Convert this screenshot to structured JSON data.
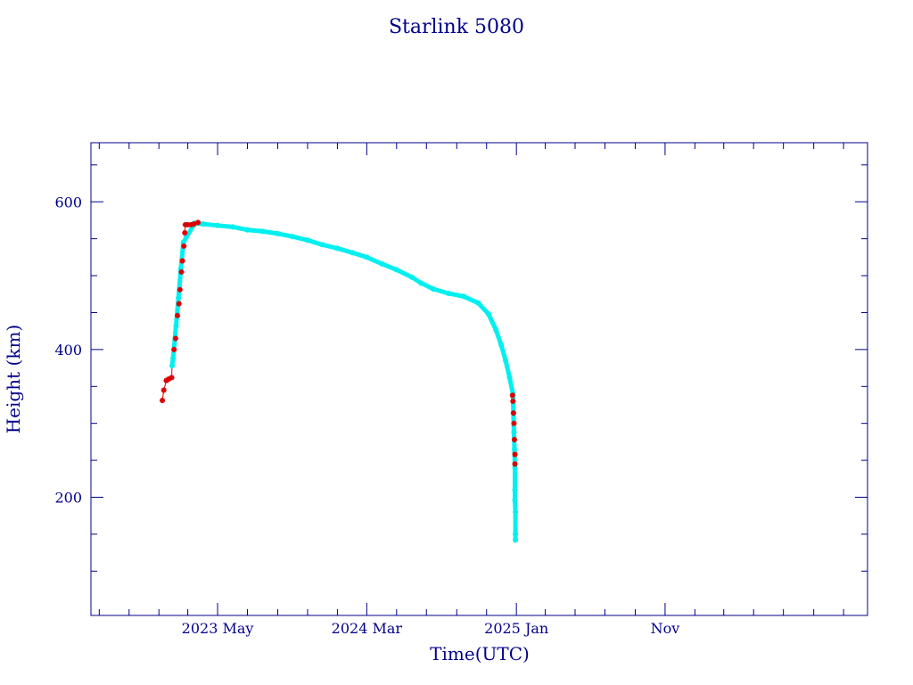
{
  "chart_data": {
    "type": "scatter",
    "title": "Starlink 5080",
    "xlabel": "Time(UTC)",
    "ylabel": "Height (km)",
    "x_domain": [
      "2022-08-15",
      "2026-12-20"
    ],
    "ylim": [
      40,
      680
    ],
    "x_ticks": [
      {
        "date": "2023-05-01",
        "label": "2023 May"
      },
      {
        "date": "2024-03-01",
        "label": "2024 Mar"
      },
      {
        "date": "2025-01-01",
        "label": "2025 Jan"
      },
      {
        "date": "2025-11-01",
        "label": "Nov"
      }
    ],
    "y_ticks": [
      200,
      400,
      600
    ],
    "colors": {
      "axis": "#00008b",
      "series_a": "#00f0f0",
      "series_b": "#dd0000",
      "line": "#dd0000"
    },
    "series": [
      {
        "color": "#00f0f0",
        "points": [
          [
            "2023-01-28",
            378
          ],
          [
            "2023-01-30",
            388
          ],
          [
            "2023-02-05",
            432
          ],
          [
            "2023-02-10",
            470
          ],
          [
            "2023-02-15",
            510
          ],
          [
            "2023-02-20",
            545
          ],
          [
            "2023-03-15",
            571
          ],
          [
            "2023-04-01",
            570
          ],
          [
            "2023-05-01",
            568
          ],
          [
            "2023-06-01",
            566
          ],
          [
            "2023-07-01",
            562
          ],
          [
            "2023-08-01",
            560
          ],
          [
            "2023-09-01",
            557
          ],
          [
            "2023-10-01",
            553
          ],
          [
            "2023-11-01",
            548
          ],
          [
            "2023-12-01",
            542
          ],
          [
            "2024-01-01",
            537
          ],
          [
            "2024-02-01",
            531
          ],
          [
            "2024-03-01",
            525
          ],
          [
            "2024-04-01",
            516
          ],
          [
            "2024-05-01",
            508
          ],
          [
            "2024-06-01",
            498
          ],
          [
            "2024-06-20",
            490
          ],
          [
            "2024-07-15",
            482
          ],
          [
            "2024-08-15",
            476
          ],
          [
            "2024-09-15",
            472
          ],
          [
            "2024-10-15",
            463
          ],
          [
            "2024-11-05",
            448
          ],
          [
            "2024-11-20",
            427
          ],
          [
            "2024-12-01",
            406
          ],
          [
            "2024-12-10",
            385
          ],
          [
            "2024-12-18",
            362
          ],
          [
            "2024-12-25",
            340
          ],
          [
            "2024-12-27",
            288
          ],
          [
            "2024-12-28",
            265
          ],
          [
            "2024-12-29",
            240
          ],
          [
            "2024-12-29",
            210
          ],
          [
            "2024-12-29",
            196
          ],
          [
            "2024-12-30",
            180
          ],
          [
            "2024-12-30",
            150
          ],
          [
            "2024-12-30",
            142
          ]
        ]
      },
      {
        "color": "#dd0000",
        "points": [
          [
            "2023-01-08",
            331
          ],
          [
            "2023-01-11",
            345
          ],
          [
            "2023-01-16",
            358
          ],
          [
            "2023-01-21",
            360
          ],
          [
            "2023-01-27",
            362
          ],
          [
            "2023-02-01",
            400
          ],
          [
            "2023-02-04",
            415
          ],
          [
            "2023-02-08",
            446
          ],
          [
            "2023-02-11",
            462
          ],
          [
            "2023-02-13",
            481
          ],
          [
            "2023-02-16",
            505
          ],
          [
            "2023-02-18",
            520
          ],
          [
            "2023-02-21",
            540
          ],
          [
            "2023-02-23",
            558
          ],
          [
            "2023-02-24",
            569
          ],
          [
            "2023-03-01",
            569
          ],
          [
            "2023-03-08",
            569
          ],
          [
            "2023-03-14",
            570
          ],
          [
            "2023-03-22",
            572
          ],
          [
            "2024-12-24",
            338
          ],
          [
            "2024-12-25",
            330
          ],
          [
            "2024-12-26",
            314
          ],
          [
            "2024-12-27",
            300
          ],
          [
            "2024-12-28",
            278
          ],
          [
            "2024-12-29",
            258
          ],
          [
            "2024-12-29",
            245
          ]
        ]
      }
    ]
  }
}
